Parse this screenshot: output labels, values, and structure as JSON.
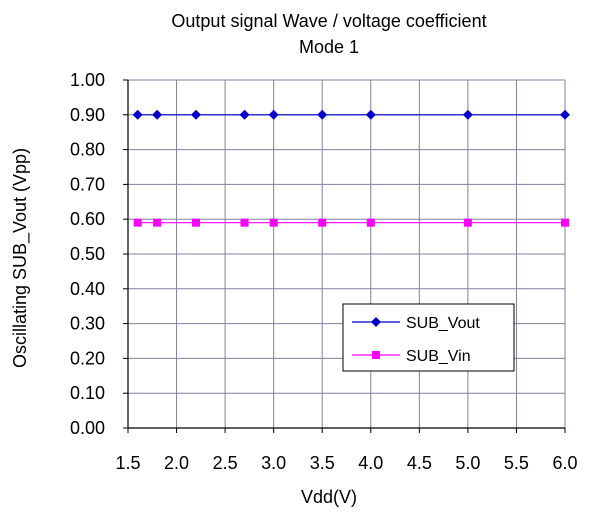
{
  "chart_data": {
    "type": "line",
    "title": "Output signal Wave  / voltage coefficient",
    "subtitle": "Mode 1",
    "xlabel": "Vdd(V)",
    "ylabel": "Oscillating SUB_Vout (Vpp)",
    "xlim": [
      1.5,
      6.0
    ],
    "ylim": [
      0.0,
      1.0
    ],
    "x_ticks": [
      "1.5",
      "2.0",
      "2.5",
      "3.0",
      "3.5",
      "4.0",
      "4.5",
      "5.0",
      "5.5",
      "6.0"
    ],
    "y_ticks": [
      "0.00",
      "0.10",
      "0.20",
      "0.30",
      "0.40",
      "0.50",
      "0.60",
      "0.70",
      "0.80",
      "0.90",
      "1.00"
    ],
    "grid": true,
    "legend_position": "bottom-right",
    "series": [
      {
        "name": "SUB_Vout",
        "color": "#0000cc",
        "marker": "diamond",
        "x": [
          1.6,
          1.8,
          2.2,
          2.7,
          3.0,
          3.5,
          4.0,
          5.0,
          6.0
        ],
        "y": [
          0.9,
          0.9,
          0.9,
          0.9,
          0.9,
          0.9,
          0.9,
          0.9,
          0.9
        ]
      },
      {
        "name": "SUB_Vin",
        "color": "#ff00ff",
        "marker": "square",
        "x": [
          1.6,
          1.8,
          2.2,
          2.7,
          3.0,
          3.5,
          4.0,
          5.0,
          6.0
        ],
        "y": [
          0.59,
          0.59,
          0.59,
          0.59,
          0.59,
          0.59,
          0.59,
          0.59,
          0.59
        ]
      }
    ]
  }
}
